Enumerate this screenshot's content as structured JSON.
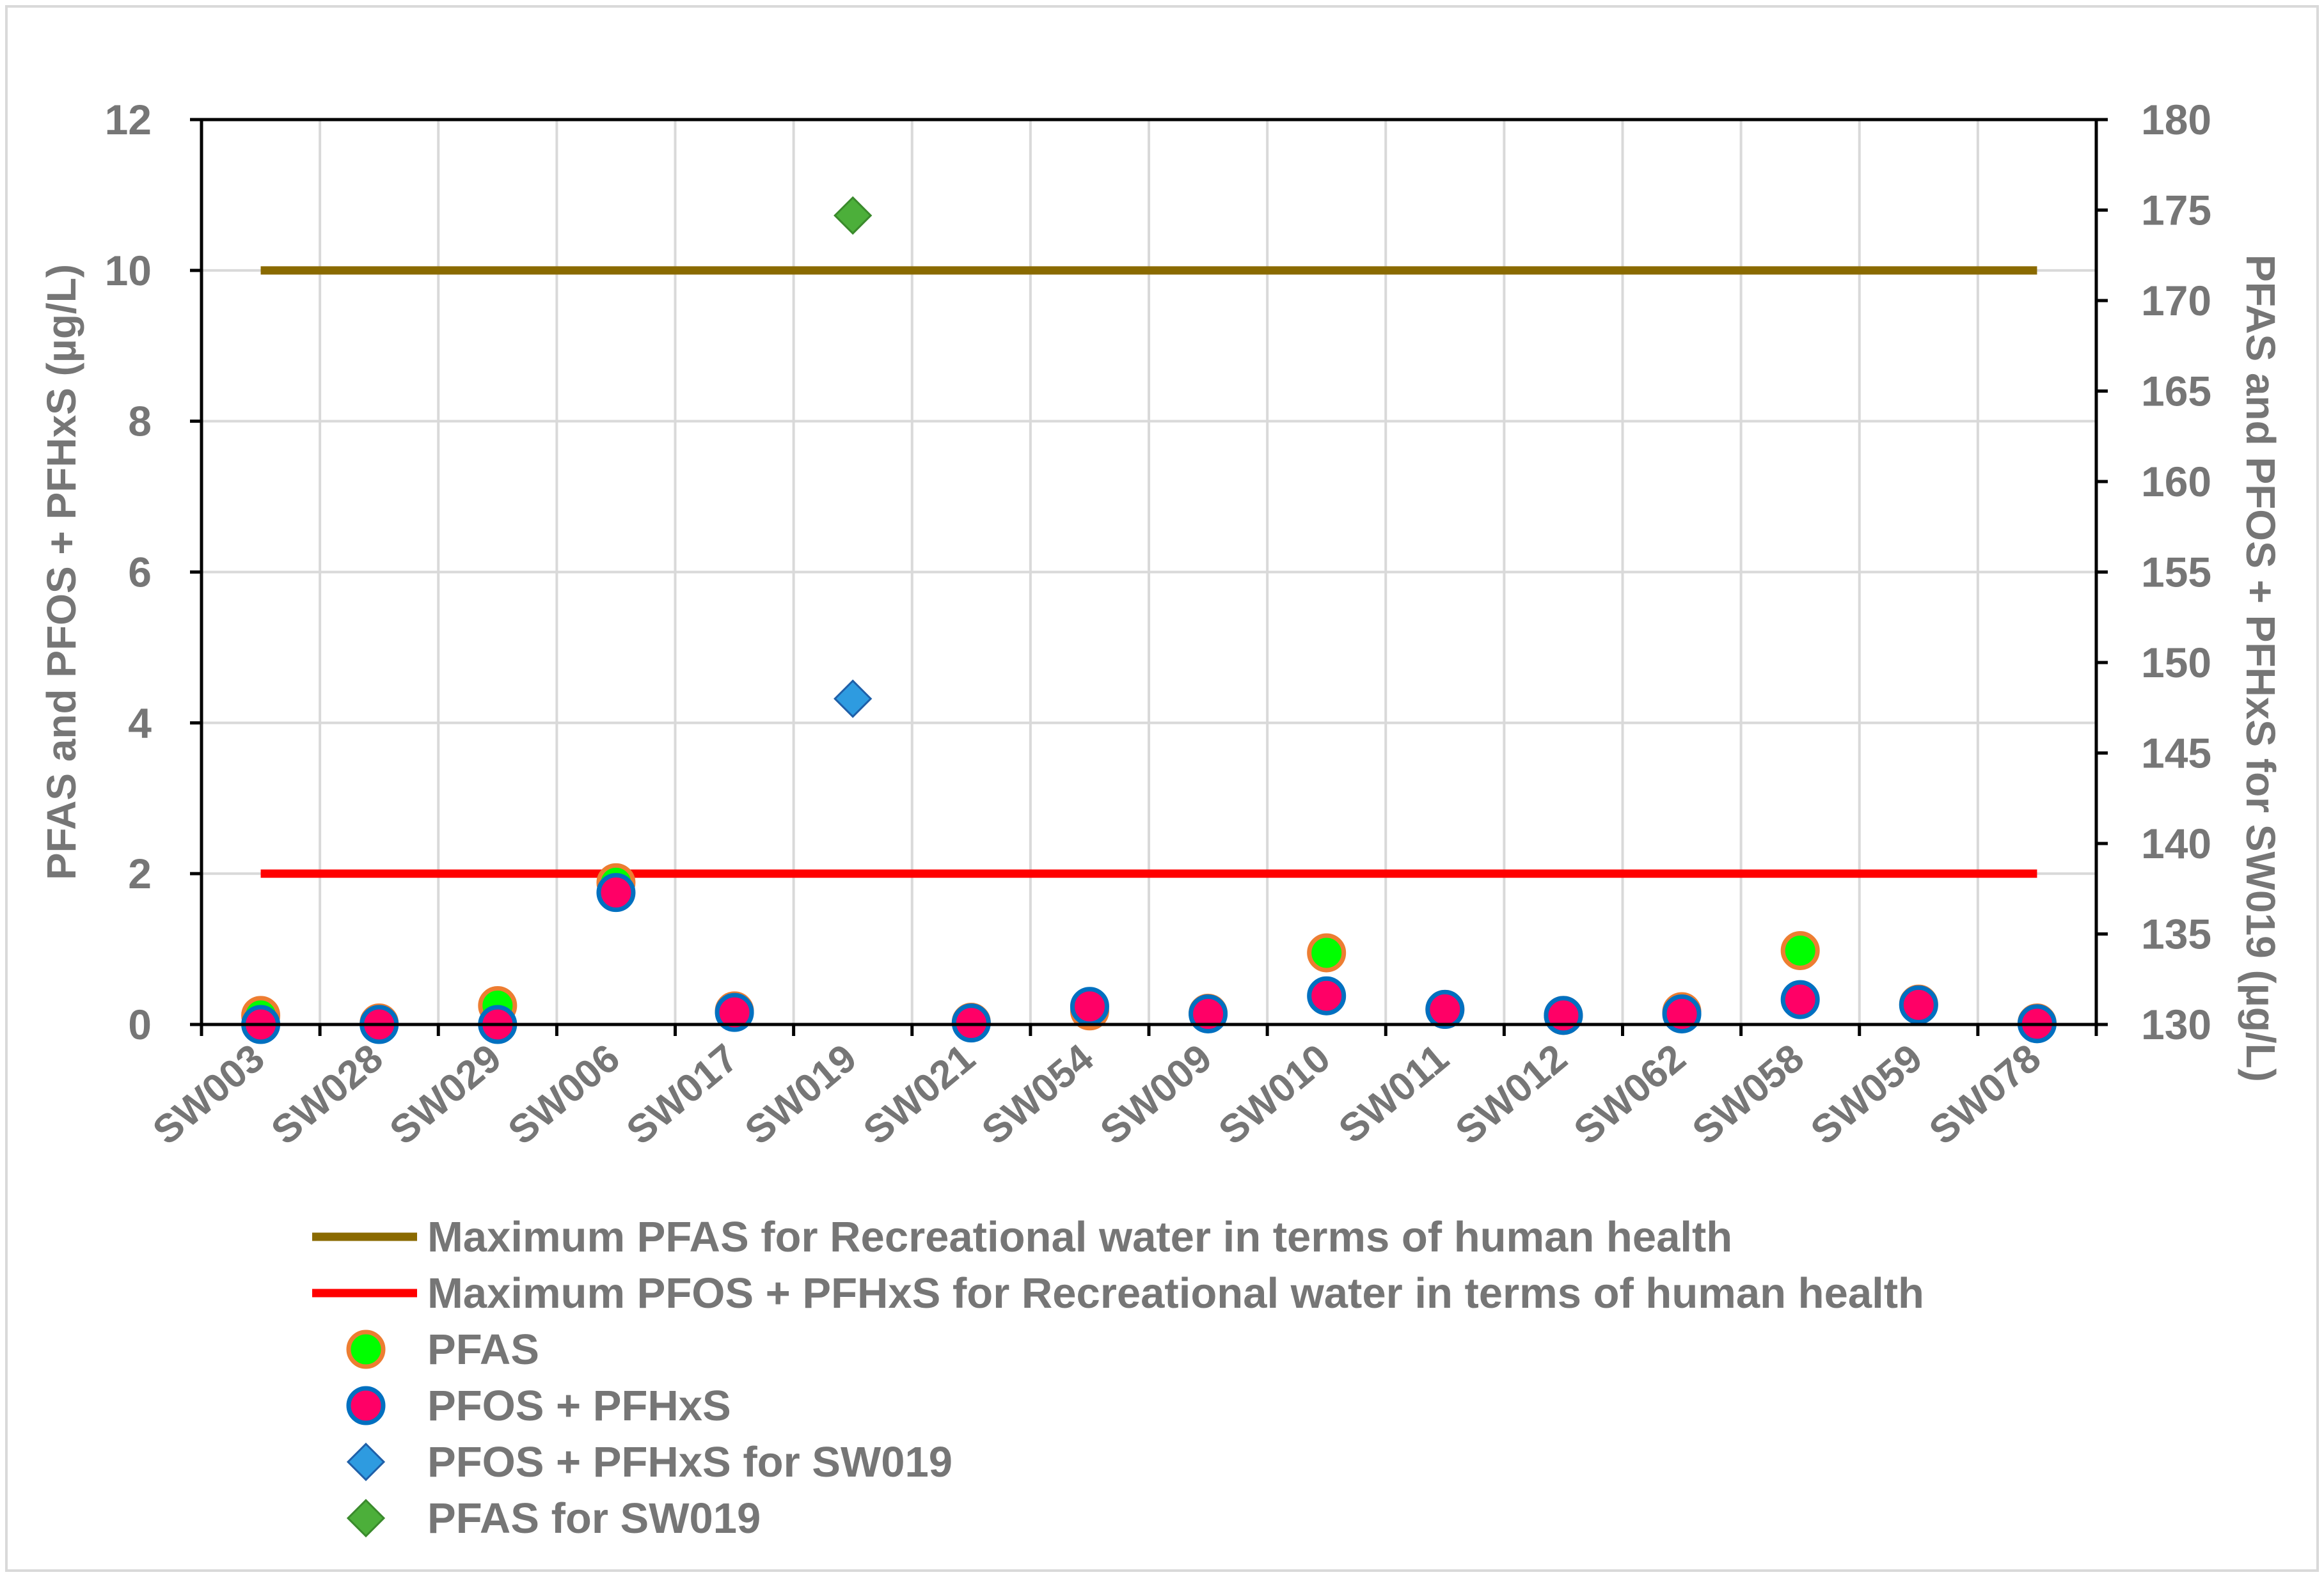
{
  "chart_data": {
    "type": "scatter",
    "categories": [
      "SW003",
      "SW028",
      "SW029",
      "SW006",
      "SW017",
      "SW019",
      "SW021",
      "SW054",
      "SW009",
      "SW010",
      "SW011",
      "SW012",
      "SW062",
      "SW058",
      "SW059",
      "SW078"
    ],
    "y_left": {
      "label": "PFAS and PFOS + PFHxS (µg/L)",
      "lim": [
        0,
        12
      ],
      "ticks": [
        0,
        2,
        4,
        6,
        8,
        10,
        12
      ]
    },
    "y_right": {
      "label": "PFAS and PFOS + PFHxS  for SW019 (µg/L)",
      "lim": [
        130,
        180
      ],
      "ticks": [
        130,
        135,
        140,
        145,
        150,
        155,
        160,
        165,
        170,
        175,
        180
      ]
    },
    "grid": true,
    "legend_position": "bottom",
    "series": [
      {
        "name": "Maximum PFAS for Recreational water in terms of human health",
        "kind": "line",
        "axis": "left",
        "color": "#8a6a00",
        "value": 10
      },
      {
        "name": "Maximum PFOS + PFHxS for Recreational water in terms of human health",
        "kind": "line",
        "axis": "left",
        "color": "#ff0000",
        "value": 2
      },
      {
        "name": "PFAS",
        "kind": "circle",
        "axis": "left",
        "fill": "#00ff00",
        "stroke": "#ed7d31",
        "values": [
          0.12,
          0.02,
          0.25,
          1.88,
          0.18,
          null,
          0.03,
          0.18,
          0.15,
          0.95,
          0.2,
          0.12,
          0.17,
          0.98,
          0.27,
          0.02
        ]
      },
      {
        "name": "PFOS + PFHxS",
        "kind": "circle",
        "axis": "left",
        "fill": "#ff0066",
        "stroke": "#0070c0",
        "values": [
          0.0,
          0.0,
          0.0,
          1.75,
          0.16,
          null,
          0.02,
          0.24,
          0.14,
          0.38,
          0.2,
          0.12,
          0.14,
          0.33,
          0.26,
          0.01
        ]
      },
      {
        "name": "PFOS + PFHxS for SW019",
        "kind": "diamond",
        "axis": "right",
        "fill": "#2e9be0",
        "stroke": "#1f5fa8",
        "values": [
          null,
          null,
          null,
          null,
          null,
          148,
          null,
          null,
          null,
          null,
          null,
          null,
          null,
          null,
          null,
          null
        ]
      },
      {
        "name": "PFAS for SW019",
        "kind": "diamond",
        "axis": "right",
        "fill": "#4caf3a",
        "stroke": "#3a8a2c",
        "values": [
          null,
          null,
          null,
          null,
          null,
          174.7,
          null,
          null,
          null,
          null,
          null,
          null,
          null,
          null,
          null,
          null
        ]
      }
    ]
  }
}
